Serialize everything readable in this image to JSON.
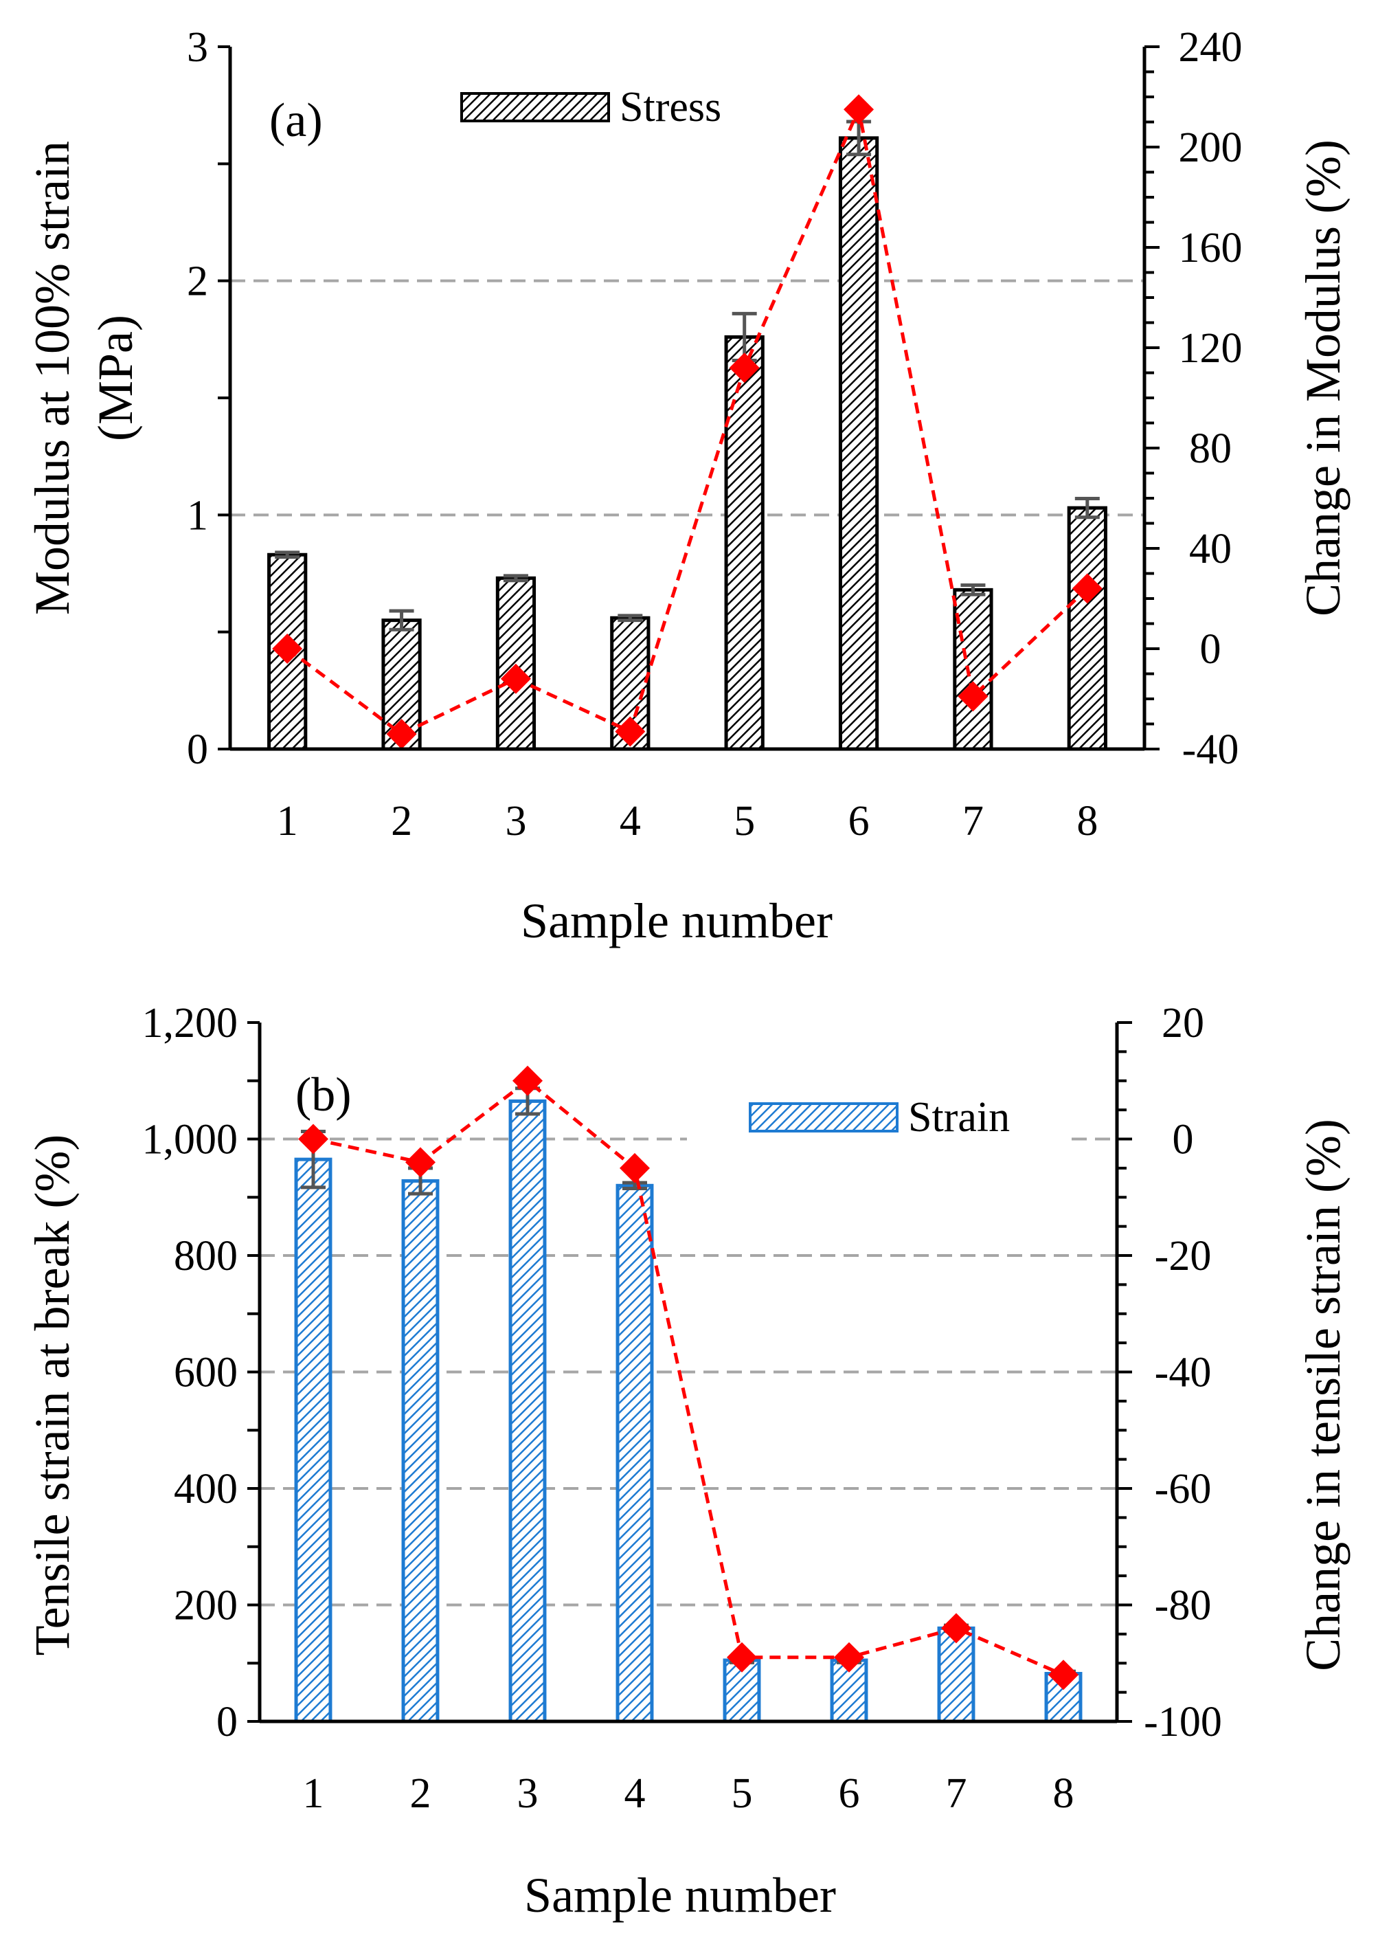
{
  "chart_data": [
    {
      "type": "bar",
      "panel_label": "(a)",
      "categories": [
        "1",
        "2",
        "3",
        "4",
        "5",
        "6",
        "7",
        "8"
      ],
      "xlabel": "Sample number",
      "ylabel_line1": "Modulus at 100% strain",
      "ylabel_line2": "(MPa)",
      "y2label": "Change in Modulus (%)",
      "ylim": [
        0,
        3
      ],
      "yticks": [
        "0",
        "1",
        "2",
        "3"
      ],
      "y2lim": [
        -40,
        240
      ],
      "y2ticks": [
        "-40",
        "0",
        "40",
        "80",
        "120",
        "160",
        "200",
        "240"
      ],
      "grid": "horizontal dashed at 1 and 2",
      "legend": "top-center",
      "series": [
        {
          "name": "Stress",
          "kind": "bar",
          "pattern": "black diagonal hatch",
          "values": [
            0.83,
            0.55,
            0.73,
            0.56,
            1.76,
            2.61,
            0.68,
            1.03
          ],
          "errors": [
            0.01,
            0.04,
            0.01,
            0.01,
            0.1,
            0.07,
            0.02,
            0.04
          ]
        },
        {
          "kind": "line",
          "axis": "right",
          "color": "#ff0000",
          "values": [
            0,
            -34,
            -12,
            -33,
            112,
            215,
            -19,
            24
          ]
        }
      ]
    },
    {
      "type": "bar",
      "panel_label": "(b)",
      "categories": [
        "1",
        "2",
        "3",
        "4",
        "5",
        "6",
        "7",
        "8"
      ],
      "xlabel": "Sample number",
      "ylabel": "Tensile strain at break (%)",
      "y2label": "Change in tensile strain (%)",
      "ylim": [
        0,
        1200
      ],
      "yticks": [
        "0",
        "200",
        "400",
        "600",
        "800",
        "1,000",
        "1,200"
      ],
      "y2lim": [
        -100,
        20
      ],
      "y2ticks": [
        "-100",
        "-80",
        "-60",
        "-40",
        "-20",
        "0",
        "20"
      ],
      "grid": "horizontal dashed at 200, 400, 600, 800, 1000",
      "legend": "top-right",
      "series": [
        {
          "name": "Strain",
          "kind": "bar",
          "pattern": "blue diagonal hatch",
          "color": "#1e7bd2",
          "values": [
            965,
            928,
            1065,
            920,
            105,
            105,
            160,
            82
          ],
          "errors": [
            48,
            22,
            22,
            5,
            4,
            4,
            5,
            4
          ]
        },
        {
          "kind": "line",
          "axis": "right",
          "color": "#ff0000",
          "values": [
            0,
            -4,
            10,
            -5,
            -89,
            -89,
            -84,
            -92
          ]
        }
      ]
    }
  ]
}
